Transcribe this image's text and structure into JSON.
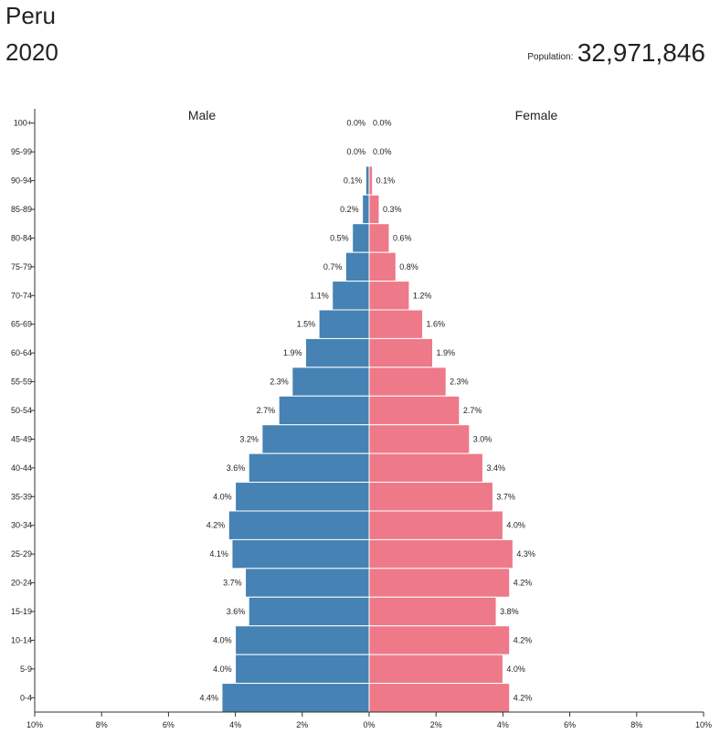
{
  "header": {
    "country": "Peru",
    "year": "2020",
    "population_label": "Population:",
    "population_value": "32,971,846"
  },
  "colors": {
    "male": "#4682b4",
    "female": "#ee7989"
  },
  "chart_data": {
    "type": "bar",
    "orientation": "horizontal",
    "subtype": "population-pyramid",
    "title": "Peru 2020",
    "categories": [
      "100+",
      "95-99",
      "90-94",
      "85-89",
      "80-84",
      "75-79",
      "70-74",
      "65-69",
      "60-64",
      "55-59",
      "50-54",
      "45-49",
      "40-44",
      "35-39",
      "30-34",
      "25-29",
      "20-24",
      "15-19",
      "10-14",
      "5-9",
      "0-4"
    ],
    "series": [
      {
        "name": "Male",
        "values": [
          0.0,
          0.0,
          0.1,
          0.2,
          0.5,
          0.7,
          1.1,
          1.5,
          1.9,
          2.3,
          2.7,
          3.2,
          3.6,
          4.0,
          4.2,
          4.1,
          3.7,
          3.6,
          4.0,
          4.0,
          4.4
        ],
        "labels": [
          "0.0%",
          "0.0%",
          "0.1%",
          "0.2%",
          "0.5%",
          "0.7%",
          "1.1%",
          "1.5%",
          "1.9%",
          "2.3%",
          "2.7%",
          "3.2%",
          "3.6%",
          "4.0%",
          "4.2%",
          "4.1%",
          "3.7%",
          "3.6%",
          "4.0%",
          "4.0%",
          "4.4%"
        ]
      },
      {
        "name": "Female",
        "values": [
          0.0,
          0.0,
          0.1,
          0.3,
          0.6,
          0.8,
          1.2,
          1.6,
          1.9,
          2.3,
          2.7,
          3.0,
          3.4,
          3.7,
          4.0,
          4.3,
          4.2,
          3.8,
          4.2,
          4.0,
          4.2
        ],
        "labels": [
          "0.0%",
          "0.0%",
          "0.1%",
          "0.3%",
          "0.6%",
          "0.8%",
          "1.2%",
          "1.6%",
          "1.9%",
          "2.3%",
          "2.7%",
          "3.0%",
          "3.4%",
          "3.7%",
          "4.0%",
          "4.3%",
          "4.2%",
          "3.8%",
          "4.2%",
          "4.0%",
          "4.2%"
        ]
      }
    ],
    "xlim": [
      -10,
      10
    ],
    "x_ticks": [
      "10%",
      "8%",
      "6%",
      "4%",
      "2%",
      "0%",
      "2%",
      "4%",
      "6%",
      "8%",
      "10%"
    ],
    "legend": [
      "Male",
      "Female"
    ]
  }
}
